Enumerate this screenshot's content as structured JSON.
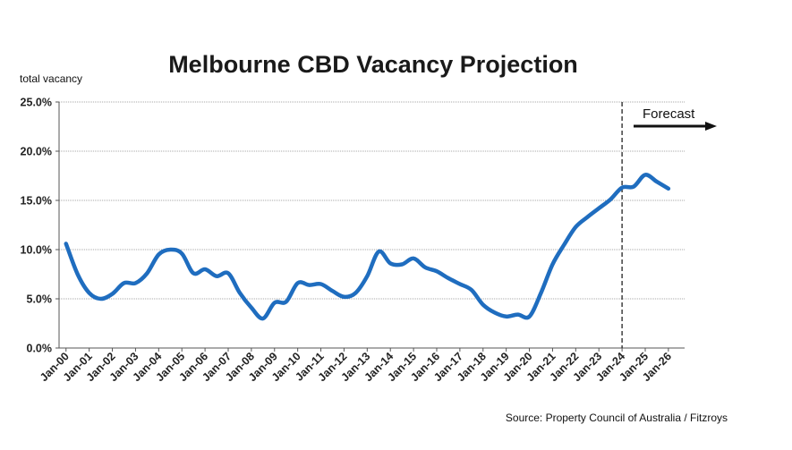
{
  "chart_data": {
    "type": "line",
    "title": "Melbourne CBD Vacancy Projection",
    "ylabel": "total vacancy",
    "xlabel": "",
    "source": "Source: Property Council of Australia / Fitzroys",
    "ylim": [
      0,
      25
    ],
    "yticks": [
      "0.0%",
      "5.0%",
      "10.0%",
      "15.0%",
      "20.0%",
      "25.0%"
    ],
    "ytick_values": [
      0,
      5,
      10,
      15,
      20,
      25
    ],
    "grid": "horizontal",
    "categories": [
      "Jan-00",
      "Jan-01",
      "Jan-02",
      "Jan-03",
      "Jan-04",
      "Jan-05",
      "Jan-06",
      "Jan-07",
      "Jan-08",
      "Jan-09",
      "Jan-10",
      "Jan-11",
      "Jan-12",
      "Jan-13",
      "Jan-14",
      "Jan-15",
      "Jan-16",
      "Jan-17",
      "Jan-18",
      "Jan-19",
      "Jan-20",
      "Jan-21",
      "Jan-22",
      "Jan-23",
      "Jan-24",
      "Jan-25",
      "Jan-26"
    ],
    "forecast": {
      "label": "Forecast",
      "start_year": 24.0
    },
    "series": [
      {
        "name": "total vacancy",
        "color": "#1f6dbf",
        "x": [
          0,
          0.5,
          1,
          1.5,
          2,
          2.5,
          3,
          3.5,
          4,
          4.5,
          5,
          5.5,
          6,
          6.5,
          7,
          7.5,
          8,
          8.5,
          9,
          9.5,
          10,
          10.5,
          11,
          11.5,
          12,
          12.5,
          13,
          13.5,
          14,
          14.5,
          15,
          15.5,
          16,
          16.5,
          17,
          17.5,
          18,
          18.5,
          19,
          19.5,
          20,
          20.5,
          21,
          21.5,
          22,
          22.5,
          23,
          23.5,
          24,
          24.5,
          25,
          25.5,
          26
        ],
        "values": [
          10.6,
          7.5,
          5.6,
          5.0,
          5.5,
          6.6,
          6.6,
          7.6,
          9.5,
          10.0,
          9.6,
          7.6,
          8.0,
          7.3,
          7.6,
          5.6,
          4.1,
          3.0,
          4.6,
          4.7,
          6.6,
          6.4,
          6.5,
          5.8,
          5.2,
          5.6,
          7.3,
          9.8,
          8.6,
          8.5,
          9.1,
          8.2,
          7.8,
          7.1,
          6.5,
          5.9,
          4.4,
          3.6,
          3.2,
          3.4,
          3.2,
          5.6,
          8.5,
          10.5,
          12.3,
          13.3,
          14.2,
          15.1,
          16.3,
          16.4,
          17.6,
          16.9,
          16.2
        ]
      }
    ]
  }
}
